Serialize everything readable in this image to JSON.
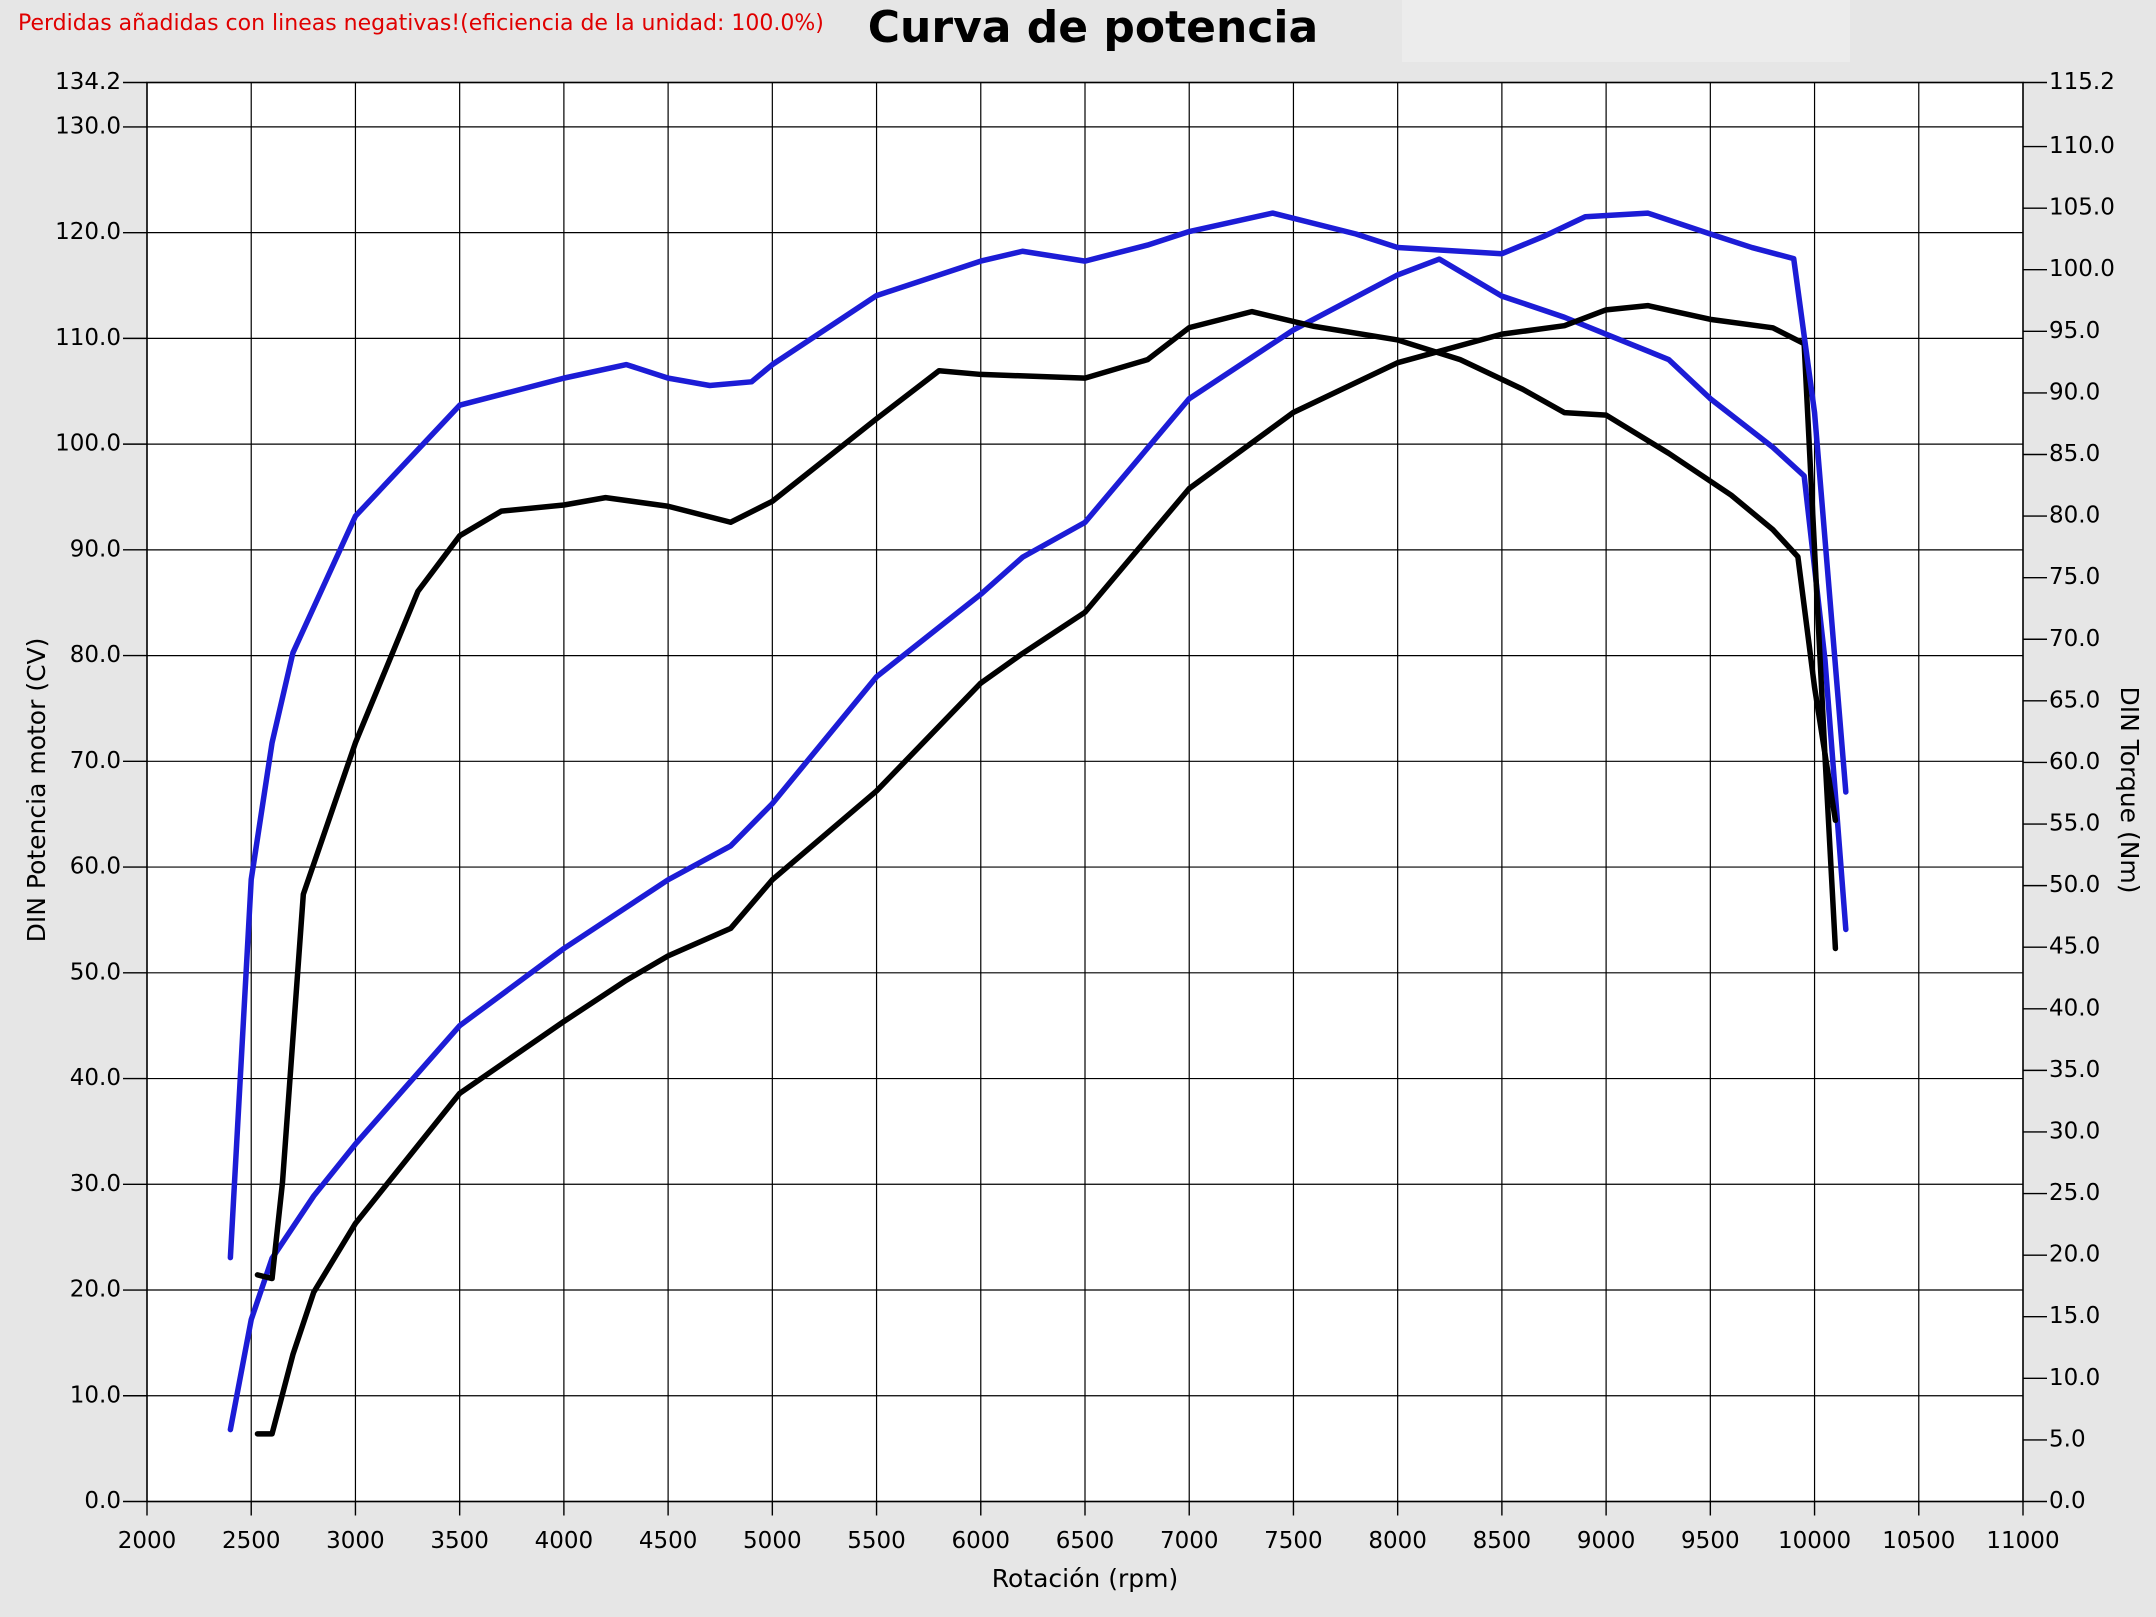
{
  "chart_data": {
    "type": "line",
    "title": "Curva de potencia",
    "note": "Perdidas añadidas con lineas negativas!(eficiencia de la unidad: 100.0%)",
    "xlabel": "Rotación (rpm)",
    "ylabel": "DIN Potencia motor (CV)",
    "y2label": "DIN Torque (Nm)",
    "grid": true,
    "xlim": [
      2000,
      11000
    ],
    "xticks": [
      2000,
      2500,
      3000,
      3500,
      4000,
      4500,
      5000,
      5500,
      6000,
      6500,
      7000,
      7500,
      8000,
      8500,
      9000,
      9500,
      10000,
      10500,
      11000
    ],
    "ylim": [
      0,
      134.2
    ],
    "yticks": [
      {
        "value": 0,
        "label": "0.0"
      },
      {
        "value": 10,
        "label": "10.0"
      },
      {
        "value": 20,
        "label": "20.0"
      },
      {
        "value": 30,
        "label": "30.0"
      },
      {
        "value": 40,
        "label": "40.0"
      },
      {
        "value": 50,
        "label": "50.0"
      },
      {
        "value": 60,
        "label": "60.0"
      },
      {
        "value": 70,
        "label": "70.0"
      },
      {
        "value": 80,
        "label": "80.0"
      },
      {
        "value": 90,
        "label": "90.0"
      },
      {
        "value": 100,
        "label": "100.0"
      },
      {
        "value": 110,
        "label": "110.0"
      },
      {
        "value": 120,
        "label": "120.0"
      },
      {
        "value": 130,
        "label": "130.0"
      },
      134.2
    ],
    "y2lim": [
      0,
      115.2
    ],
    "y2ticks": [
      {
        "value": 0,
        "label": "0.0"
      },
      {
        "value": 5,
        "label": "5.0"
      },
      {
        "value": 10,
        "label": "10.0"
      },
      {
        "value": 15,
        "label": "15.0"
      },
      {
        "value": 20,
        "label": "20.0"
      },
      {
        "value": 25,
        "label": "25.0"
      },
      {
        "value": 30,
        "label": "30.0"
      },
      {
        "value": 35,
        "label": "35.0"
      },
      {
        "value": 40,
        "label": "40.0"
      },
      {
        "value": 45,
        "label": "45.0"
      },
      {
        "value": 50,
        "label": "50.0"
      },
      {
        "value": 55,
        "label": "55.0"
      },
      {
        "value": 60,
        "label": "60.0"
      },
      {
        "value": 65,
        "label": "65.0"
      },
      {
        "value": 70,
        "label": "70.0"
      },
      {
        "value": 75,
        "label": "75.0"
      },
      {
        "value": 80,
        "label": "80.0"
      },
      {
        "value": 85,
        "label": "85.0"
      },
      {
        "value": 90,
        "label": "90.0"
      },
      {
        "value": 95,
        "label": "95.0"
      },
      {
        "value": 100,
        "label": "100.0"
      },
      {
        "value": 105,
        "label": "105.0"
      },
      {
        "value": 110,
        "label": "110.0"
      },
      115.2
    ],
    "series": [
      {
        "color": "#1c1cd6",
        "x": [
          2400,
          2500,
          2600,
          2800,
          3000,
          3500,
          4000,
          4500,
          4800,
          5000,
          5500,
          6000,
          6200,
          6500,
          7000,
          7500,
          8000,
          8200,
          8500,
          8800,
          9000,
          9300,
          9500,
          9800,
          9950,
          10050,
          10150
        ],
        "values": [
          6.8,
          17.2,
          23,
          28.9,
          33.8,
          45,
          52.3,
          58.8,
          62,
          66,
          78,
          85.8,
          89.3,
          92.6,
          104.3,
          110.8,
          116,
          117.5,
          114,
          112,
          110.4,
          108,
          104.3,
          99.7,
          97,
          79.6,
          54.1
        ]
      },
      {
        "color": "#000000",
        "x": [
          2530,
          2600,
          2700,
          2800,
          3000,
          3500,
          4000,
          4300,
          4500,
          4800,
          5000,
          5500,
          6000,
          6200,
          6500,
          7000,
          7500,
          8000,
          8500,
          8800,
          9000,
          9200,
          9500,
          9800,
          9950,
          10050,
          10100
        ],
        "values": [
          6.4,
          6.4,
          13.9,
          19.8,
          26.3,
          38.6,
          45.4,
          49.3,
          51.6,
          54.2,
          58.8,
          67.2,
          77.4,
          80.2,
          84.1,
          95.8,
          103,
          107.7,
          110.4,
          111.2,
          112.7,
          113.1,
          111.8,
          111,
          109.5,
          70.5,
          52.3
        ]
      },
      {
        "color": "#1c1cd6",
        "axis": "y2",
        "x": [
          2400,
          2500,
          2600,
          2700,
          3000,
          3500,
          4000,
          4300,
          4500,
          4700,
          4900,
          5000,
          5500,
          6000,
          6200,
          6500,
          6800,
          7000,
          7400,
          7800,
          8000,
          8500,
          8700,
          8900,
          9200,
          9500,
          9700,
          9900,
          10000,
          10150
        ],
        "values": [
          19.8,
          50.5,
          61.6,
          68.9,
          80,
          89,
          91.2,
          92.3,
          91.2,
          90.6,
          90.9,
          92.3,
          97.9,
          100.7,
          101.5,
          100.7,
          102,
          103.1,
          104.6,
          102.9,
          101.8,
          101.3,
          102.7,
          104.3,
          104.6,
          102.9,
          101.8,
          100.9,
          88.4,
          57.6
        ]
      },
      {
        "color": "#000000",
        "axis": "y2",
        "x": [
          2530,
          2600,
          2650,
          2750,
          3000,
          3300,
          3500,
          3700,
          4000,
          4200,
          4500,
          4800,
          5000,
          5500,
          5800,
          6000,
          6500,
          6800,
          7000,
          7300,
          7600,
          8000,
          8300,
          8600,
          8800,
          9000,
          9300,
          9600,
          9800,
          9920,
          10000,
          10100
        ],
        "values": [
          18.4,
          18.1,
          25.9,
          49.3,
          61.6,
          73.9,
          78.4,
          80.4,
          80.9,
          81.5,
          80.8,
          79.5,
          81.2,
          87.9,
          91.8,
          91.5,
          91.2,
          92.7,
          95.3,
          96.6,
          95.4,
          94.3,
          92.7,
          90.3,
          88.4,
          88.2,
          85.1,
          81.7,
          78.9,
          76.7,
          66.1,
          55.3
        ]
      }
    ]
  }
}
